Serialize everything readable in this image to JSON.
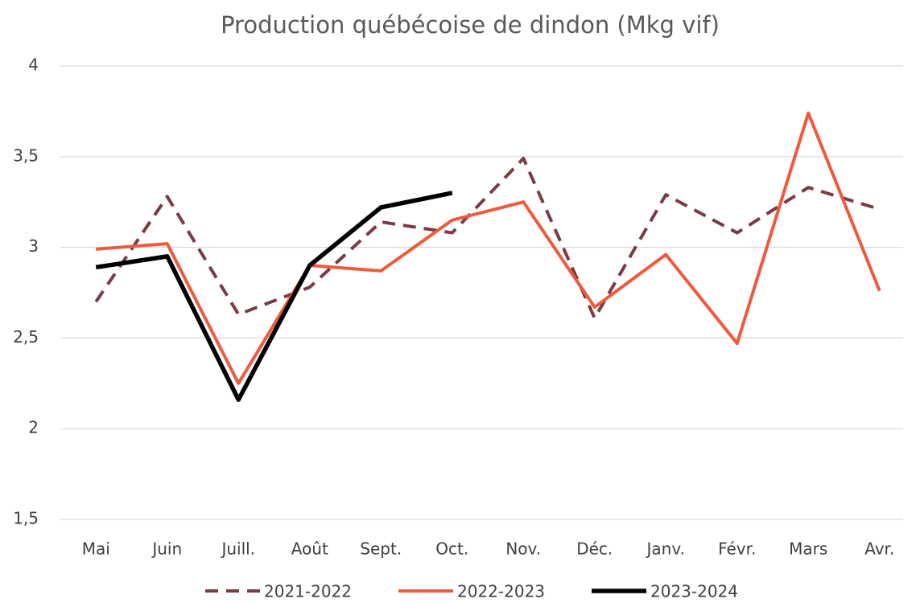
{
  "chart_data": {
    "type": "line",
    "title": "Production québécoise de dindon (Mkg vif)",
    "categories": [
      "Mai",
      "Juin",
      "Juill.",
      "Août",
      "Sept.",
      "Oct.",
      "Nov.",
      "Déc.",
      "Janv.",
      "Févr.",
      "Mars",
      "Avr."
    ],
    "series": [
      {
        "name": "2021-2022",
        "color": "#7b3a45",
        "dashed": true,
        "values": [
          2.7,
          3.28,
          2.63,
          2.78,
          3.14,
          3.08,
          3.49,
          2.61,
          3.29,
          3.08,
          3.33,
          3.21
        ]
      },
      {
        "name": "2022-2023",
        "color": "#f05a3c",
        "values": [
          2.99,
          3.02,
          2.25,
          2.9,
          2.87,
          3.15,
          3.25,
          2.67,
          2.96,
          2.47,
          3.74,
          2.76
        ]
      },
      {
        "name": "2023-2024",
        "color": "#000000",
        "values": [
          2.89,
          2.95,
          2.16,
          2.9,
          3.22,
          3.3,
          null,
          null,
          null,
          null,
          null,
          null
        ]
      }
    ],
    "ylim": [
      1.5,
      4
    ],
    "yticks": [
      {
        "value": 1.5,
        "label": "1,5"
      },
      2,
      {
        "value": 2.5,
        "label": "2,5"
      },
      3,
      {
        "value": 3.5,
        "label": "3,5"
      },
      4
    ],
    "grid": true,
    "legend": "bottom"
  }
}
